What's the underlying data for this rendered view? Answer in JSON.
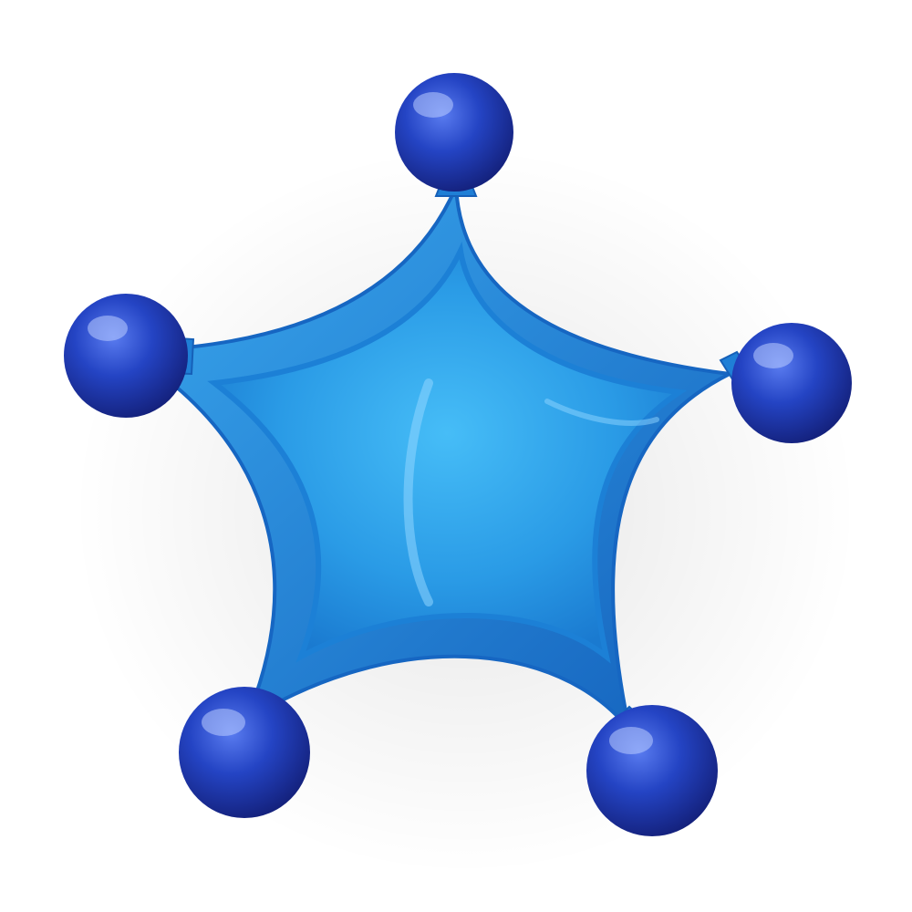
{
  "image": {
    "subject": "star-shaped-massager",
    "arm_count": 5,
    "colors": {
      "background": "#ffffff",
      "star_body": "#1f8fe0",
      "star_body_light": "#3fb4f5",
      "star_rim": "#1a74c9",
      "ball": "#1b3fb8",
      "ball_dark": "#142a88",
      "ball_highlight": "#8fb4ff"
    }
  }
}
